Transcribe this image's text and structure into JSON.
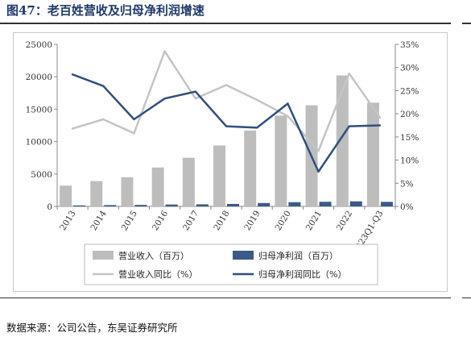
{
  "figure": {
    "title": "图47：老百姓营收及归母净利润增速",
    "source": "数据来源：公司公告，东吴证券研究所"
  },
  "colors": {
    "revenue_bar": "#bdbdbd",
    "profit_bar": "#3a5a88",
    "revenue_yoy_line": "#c4c4c4",
    "profit_yoy_line": "#2f4f7f",
    "title": "#1f3a6b"
  },
  "chart_data": {
    "type": "bar",
    "categories": [
      "2013",
      "2014",
      "2015",
      "2016",
      "2017",
      "2018",
      "2019",
      "2020",
      "2021",
      "2022",
      "2023Q1-Q3"
    ],
    "series": [
      {
        "name": "营业收入（百万）",
        "kind": "bar",
        "axis": "left",
        "values": [
          3200,
          3900,
          4500,
          6000,
          7500,
          9400,
          11700,
          14000,
          15600,
          20200,
          16000
        ]
      },
      {
        "name": "归母净利润（百万）",
        "kind": "bar",
        "axis": "left",
        "values": [
          150,
          200,
          230,
          290,
          320,
          380,
          520,
          650,
          710,
          780,
          700
        ]
      },
      {
        "name": "营业收入同比（%）",
        "kind": "line",
        "axis": "right",
        "values": [
          16.8,
          18.8,
          15.8,
          33.5,
          23.3,
          26.2,
          23.0,
          19.5,
          12.0,
          28.7,
          19.2
        ]
      },
      {
        "name": "归母净利润同比（%）",
        "kind": "line",
        "axis": "right",
        "values": [
          28.5,
          26.0,
          18.8,
          23.3,
          24.8,
          17.3,
          17.0,
          22.2,
          7.5,
          17.3,
          17.5
        ]
      }
    ],
    "y_left": {
      "min": 0,
      "max": 25000,
      "ticks": [
        "0",
        "5000",
        "10000",
        "15000",
        "20000",
        "25000"
      ]
    },
    "y_right": {
      "min": 0,
      "max": 35,
      "ticks": [
        "0%",
        "5%",
        "10%",
        "15%",
        "20%",
        "25%",
        "30%",
        "35%"
      ]
    },
    "grid": false,
    "legend_position": "bottom"
  }
}
